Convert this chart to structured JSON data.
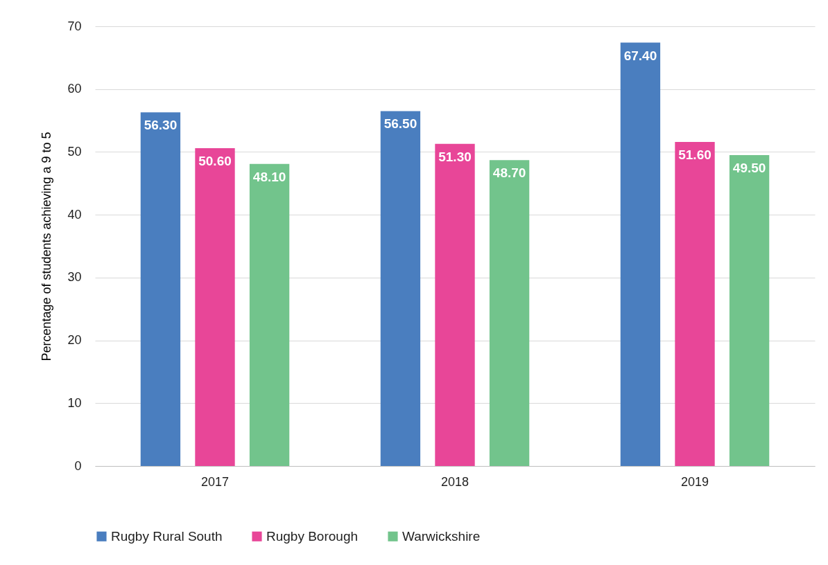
{
  "chart_data": {
    "type": "bar",
    "ylabel": "Percentage of students achieving a 9 to 5",
    "categories": [
      "2017",
      "2018",
      "2019"
    ],
    "series": [
      {
        "name": "Rugby Rural South",
        "color": "#4a7ebf",
        "values": [
          56.3,
          56.5,
          67.4
        ],
        "value_labels": [
          "56.30",
          "56.50",
          "67.40"
        ]
      },
      {
        "name": "Rugby Borough",
        "color": "#e84698",
        "values": [
          50.6,
          51.3,
          51.6
        ],
        "value_labels": [
          "50.60",
          "51.30",
          "51.60"
        ]
      },
      {
        "name": "Warwickshire",
        "color": "#72c48c",
        "values": [
          48.1,
          48.7,
          49.5
        ],
        "value_labels": [
          "48.10",
          "48.70",
          "49.50"
        ]
      }
    ],
    "ylim": [
      0,
      70
    ],
    "yticks": [
      0,
      10,
      20,
      30,
      40,
      50,
      60,
      70
    ],
    "grid": "y",
    "legend": "bottom"
  }
}
